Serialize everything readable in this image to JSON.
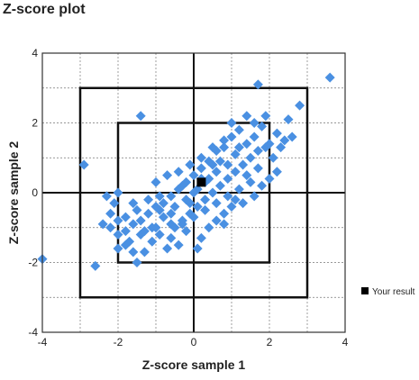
{
  "chart_data": {
    "type": "scatter",
    "title": "Z-score plot",
    "xlabel": "Z-score sample 1",
    "ylabel": "Z-score sample 2",
    "xlim": [
      -4,
      4
    ],
    "ylim": [
      -4,
      4
    ],
    "xticks": [
      "-4",
      "-2",
      "0",
      "2",
      "4"
    ],
    "yticks": [
      "4",
      "2",
      "0",
      "-2",
      "-4"
    ],
    "grid": true,
    "boxes": [
      {
        "half_width": 2
      },
      {
        "half_width": 3
      }
    ],
    "series": [
      {
        "name": "",
        "color": "#4a90e2",
        "marker": "diamond",
        "points": [
          [
            -4.0,
            -1.9
          ],
          [
            -2.6,
            -2.1
          ],
          [
            -2.9,
            0.8
          ],
          [
            -1.4,
            2.2
          ],
          [
            3.6,
            3.3
          ],
          [
            1.7,
            3.1
          ],
          [
            2.8,
            2.5
          ],
          [
            2.5,
            2.1
          ],
          [
            2.6,
            1.6
          ],
          [
            2.4,
            1.5
          ],
          [
            2.2,
            1.7
          ],
          [
            1.9,
            2.2
          ],
          [
            2.0,
            1.4
          ],
          [
            1.8,
            1.9
          ],
          [
            1.6,
            2.0
          ],
          [
            1.4,
            2.2
          ],
          [
            1.2,
            1.8
          ],
          [
            1.0,
            1.6
          ],
          [
            0.8,
            1.3
          ],
          [
            0.6,
            1.2
          ],
          [
            0.4,
            0.9
          ],
          [
            0.2,
            0.7
          ],
          [
            0.0,
            0.5
          ],
          [
            -0.2,
            0.3
          ],
          [
            -0.4,
            0.1
          ],
          [
            -0.6,
            -0.1
          ],
          [
            -0.8,
            -0.3
          ],
          [
            -1.0,
            -0.4
          ],
          [
            -1.2,
            -0.6
          ],
          [
            -1.4,
            -0.8
          ],
          [
            -1.6,
            -0.9
          ],
          [
            -1.8,
            -1.1
          ],
          [
            -2.0,
            -1.2
          ],
          [
            -2.2,
            -1.0
          ],
          [
            -2.4,
            -0.9
          ],
          [
            -2.2,
            -0.6
          ],
          [
            -2.0,
            -0.8
          ],
          [
            -1.8,
            -1.5
          ],
          [
            -1.6,
            -1.7
          ],
          [
            -1.5,
            -2.0
          ],
          [
            -1.3,
            -1.7
          ],
          [
            -1.1,
            -1.4
          ],
          [
            -0.9,
            -1.2
          ],
          [
            -0.7,
            -1.6
          ],
          [
            -0.5,
            -1.0
          ],
          [
            -0.3,
            -0.8
          ],
          [
            -0.1,
            -0.6
          ],
          [
            0.1,
            -0.4
          ],
          [
            0.3,
            -0.2
          ],
          [
            0.5,
            0.0
          ],
          [
            0.7,
            0.2
          ],
          [
            0.9,
            0.4
          ],
          [
            1.1,
            0.6
          ],
          [
            1.3,
            0.8
          ],
          [
            1.5,
            1.0
          ],
          [
            1.7,
            1.2
          ],
          [
            1.9,
            1.3
          ],
          [
            2.1,
            1.0
          ],
          [
            2.2,
            0.6
          ],
          [
            2.0,
            0.4
          ],
          [
            1.8,
            0.2
          ],
          [
            1.5,
            0.3
          ],
          [
            1.2,
            0.1
          ],
          [
            0.9,
            -0.1
          ],
          [
            0.6,
            -0.3
          ],
          [
            0.3,
            -0.5
          ],
          [
            0.0,
            -0.7
          ],
          [
            -0.3,
            -0.9
          ],
          [
            -0.6,
            -0.6
          ],
          [
            -0.9,
            -0.5
          ],
          [
            -1.2,
            -0.2
          ],
          [
            -1.5,
            -0.5
          ],
          [
            -1.8,
            -0.7
          ],
          [
            -2.1,
            -0.3
          ],
          [
            -2.3,
            -0.1
          ],
          [
            -2.0,
            0.0
          ],
          [
            -1.0,
            0.3
          ],
          [
            -0.7,
            0.5
          ],
          [
            -0.4,
            0.6
          ],
          [
            -0.1,
            0.8
          ],
          [
            0.2,
            1.0
          ],
          [
            0.5,
            1.3
          ],
          [
            0.8,
            1.5
          ],
          [
            1.1,
            1.1
          ],
          [
            1.4,
            1.4
          ],
          [
            1.6,
            1.6
          ],
          [
            1.0,
            2.0
          ],
          [
            0.7,
            0.9
          ],
          [
            0.4,
            0.4
          ],
          [
            0.1,
            0.1
          ],
          [
            -0.2,
            -0.2
          ],
          [
            -0.5,
            -0.4
          ],
          [
            -0.8,
            -0.7
          ],
          [
            -1.1,
            -1.0
          ],
          [
            -1.4,
            -1.2
          ],
          [
            -1.7,
            -1.4
          ],
          [
            -2.0,
            -1.6
          ],
          [
            -1.0,
            -1.0
          ],
          [
            -0.6,
            -0.9
          ],
          [
            -0.2,
            -1.1
          ],
          [
            0.2,
            -1.3
          ],
          [
            0.4,
            -1.0
          ],
          [
            0.6,
            -0.8
          ],
          [
            0.8,
            -0.6
          ],
          [
            1.0,
            -0.4
          ],
          [
            1.3,
            -0.3
          ],
          [
            1.6,
            -0.1
          ],
          [
            0.9,
            0.8
          ],
          [
            1.2,
            1.3
          ],
          [
            0.3,
            0.3
          ],
          [
            -0.3,
            0.2
          ],
          [
            -0.9,
            -0.1
          ],
          [
            0.6,
            0.6
          ],
          [
            0.0,
            0.0
          ],
          [
            0.2,
            0.4
          ],
          [
            -0.1,
            -0.3
          ],
          [
            0.5,
            0.8
          ],
          [
            -0.6,
            -1.3
          ],
          [
            1.4,
            0.5
          ],
          [
            1.7,
            0.7
          ],
          [
            2.3,
            1.3
          ],
          [
            -1.3,
            -1.1
          ],
          [
            -0.4,
            -1.5
          ],
          [
            0.1,
            -1.6
          ],
          [
            0.8,
            -0.9
          ],
          [
            1.1,
            -0.2
          ],
          [
            -1.6,
            -0.3
          ]
        ]
      },
      {
        "name": "Your result",
        "color": "#000000",
        "marker": "square",
        "points": [
          [
            0.2,
            0.3
          ]
        ]
      }
    ],
    "legend": {
      "placement": "right",
      "label": "Your result"
    }
  }
}
